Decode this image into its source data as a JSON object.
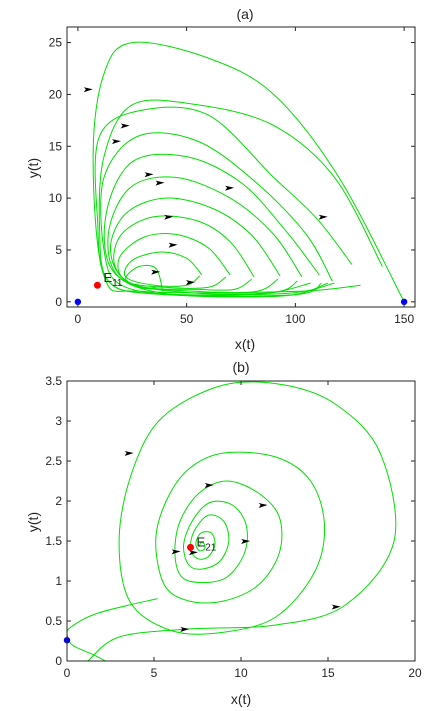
{
  "chart_data": [
    {
      "type": "line",
      "panel_label": "(a)",
      "xlabel": "x(t)",
      "ylabel": "y(t)",
      "xlim": [
        -5,
        155
      ],
      "ylim": [
        -0.5,
        26.5
      ],
      "xticks": [
        0,
        50,
        100,
        150
      ],
      "yticks": [
        0,
        5,
        10,
        15,
        20,
        25
      ],
      "grid": false,
      "line_color": "#00e000",
      "series": [
        {
          "values": [
            [
              150,
              0
            ],
            [
              120,
              12
            ],
            [
              90,
              20
            ],
            [
              60,
              23.5
            ],
            [
              25,
              25
            ],
            [
              12,
              22
            ],
            [
              7,
              14
            ],
            [
              12,
              2.5
            ],
            [
              30,
              1.0
            ],
            [
              100,
              1.0
            ],
            [
              130,
              1.6
            ]
          ]
        },
        {
          "values": [
            [
              140,
              3.4
            ],
            [
              118,
              12
            ],
            [
              90,
              17
            ],
            [
              55,
              19
            ],
            [
              25,
              19
            ],
            [
              12,
              14
            ],
            [
              10,
              7
            ],
            [
              14,
              2
            ],
            [
              35,
              0.8
            ],
            [
              95,
              0.8
            ],
            [
              118,
              1.8
            ]
          ]
        },
        {
          "values": [
            [
              126,
              3.6
            ],
            [
              110,
              8
            ],
            [
              90,
              12
            ],
            [
              60,
              18
            ],
            [
              30,
              18.5
            ],
            [
              10,
              16
            ],
            [
              9,
              8
            ],
            [
              14,
              2
            ],
            [
              40,
              0.7
            ],
            [
              100,
              0.7
            ],
            [
              112,
              1.8
            ]
          ]
        },
        {
          "values": [
            [
              117,
              2.0
            ],
            [
              105,
              6.5
            ],
            [
              82,
              11.5
            ],
            [
              55,
              15.5
            ],
            [
              28,
              16
            ],
            [
              12,
              12
            ],
            [
              12,
              5
            ],
            [
              20,
              1.6
            ],
            [
              50,
              0.6
            ],
            [
              96,
              0.6
            ],
            [
              115,
              1.8
            ]
          ]
        },
        {
          "values": [
            [
              111,
              2.6
            ],
            [
              95,
              7
            ],
            [
              75,
              11.5
            ],
            [
              50,
              14
            ],
            [
              25,
              13.5
            ],
            [
              13,
              8.5
            ],
            [
              16,
              3
            ],
            [
              40,
              0.8
            ],
            [
              85,
              0.8
            ],
            [
              107,
              1.8
            ]
          ]
        },
        {
          "values": [
            [
              103,
              2.4
            ],
            [
              90,
              6.5
            ],
            [
              70,
              10
            ],
            [
              45,
              12
            ],
            [
              24,
              11
            ],
            [
              14,
              6.5
            ],
            [
              20,
              2.2
            ],
            [
              50,
              0.9
            ],
            [
              90,
              0.9
            ],
            [
              101,
              2.0
            ]
          ]
        },
        {
          "values": [
            [
              93,
              2.5
            ],
            [
              80,
              6.4
            ],
            [
              62,
              9
            ],
            [
              40,
              10
            ],
            [
              22,
              8.5
            ],
            [
              15,
              5
            ],
            [
              24,
              1.8
            ],
            [
              55,
              1.0
            ],
            [
              82,
              1.0
            ],
            [
              92,
              2.2
            ]
          ]
        },
        {
          "values": [
            [
              81,
              2.4
            ],
            [
              70,
              5.8
            ],
            [
              55,
              7.8
            ],
            [
              35,
              8.2
            ],
            [
              20,
              6.5
            ],
            [
              17,
              3.5
            ],
            [
              28,
              1.5
            ],
            [
              55,
              1.2
            ],
            [
              72,
              1.2
            ],
            [
              80,
              2.2
            ]
          ]
        },
        {
          "values": [
            [
              70,
              2.6
            ],
            [
              60,
              5.2
            ],
            [
              45,
              6.5
            ],
            [
              30,
              6.2
            ],
            [
              19,
              4.2
            ],
            [
              22,
              2.0
            ],
            [
              40,
              1.4
            ],
            [
              60,
              1.4
            ],
            [
              68,
              2.4
            ]
          ]
        },
        {
          "values": [
            [
              57,
              2.6
            ],
            [
              50,
              4.2
            ],
            [
              38,
              4.8
            ],
            [
              25,
              4.0
            ],
            [
              22,
              2.4
            ],
            [
              35,
              1.6
            ],
            [
              50,
              1.6
            ],
            [
              56,
              2.5
            ]
          ]
        },
        {
          "values": [
            [
              39,
              1.0
            ],
            [
              36,
              3.2
            ],
            [
              28,
              3.4
            ],
            [
              22,
              2.2
            ],
            [
              30,
              1.3
            ],
            [
              38,
              1.5
            ]
          ]
        }
      ],
      "arrows": [
        [
          5,
          20.5
        ],
        [
          18,
          15.5
        ],
        [
          22,
          17
        ],
        [
          33,
          12.3
        ],
        [
          38,
          11.5
        ],
        [
          42,
          8.2
        ],
        [
          44,
          5.5
        ],
        [
          36,
          2.9
        ],
        [
          52,
          1.9
        ],
        [
          70,
          11
        ],
        [
          113,
          8.2
        ]
      ],
      "equilibria": [
        {
          "x": 0,
          "y": 0,
          "color": "#0000ff",
          "label": ""
        },
        {
          "x": 150,
          "y": 0,
          "color": "#0000ff",
          "label": ""
        },
        {
          "x": 9,
          "y": 1.6,
          "color": "#ff0000",
          "label": "E",
          "subscript": "11"
        }
      ]
    },
    {
      "type": "line",
      "panel_label": "(b)",
      "xlabel": "x(t)",
      "ylabel": "y(t)",
      "xlim": [
        0,
        20
      ],
      "ylim": [
        0,
        3.5
      ],
      "xticks": [
        0,
        5,
        10,
        15,
        20
      ],
      "yticks": [
        0,
        0.5,
        1,
        1.5,
        2,
        2.5,
        3,
        3.5
      ],
      "grid": false,
      "line_color": "#00e000",
      "series": [
        {
          "values": [
            [
              1.2,
              0
            ],
            [
              3,
              0.3
            ],
            [
              7,
              0.4
            ],
            [
              12,
              0.45
            ],
            [
              16,
              0.7
            ],
            [
              18.8,
              1.5
            ],
            [
              18,
              2.6
            ],
            [
              15.5,
              3.2
            ],
            [
              12.5,
              3.45
            ],
            [
              9,
              3.45
            ],
            [
              5.5,
              3.05
            ],
            [
              3.8,
              2.4
            ],
            [
              3,
              1.55
            ],
            [
              3.6,
              0.75
            ],
            [
              6,
              0.38
            ],
            [
              9,
              0.36
            ],
            [
              12,
              0.55
            ],
            [
              14.2,
              1.1
            ],
            [
              14.8,
              1.7
            ],
            [
              14,
              2.25
            ],
            [
              12,
              2.55
            ],
            [
              9,
              2.6
            ],
            [
              7,
              2.4
            ],
            [
              5.7,
              2.0
            ],
            [
              5.1,
              1.5
            ],
            [
              5.6,
              0.95
            ],
            [
              7,
              0.75
            ],
            [
              9,
              0.75
            ],
            [
              11,
              0.95
            ],
            [
              12.2,
              1.35
            ],
            [
              12.2,
              1.8
            ],
            [
              11,
              2.1
            ],
            [
              9.2,
              2.25
            ],
            [
              7.6,
              2.1
            ],
            [
              6.5,
              1.75
            ],
            [
              6.2,
              1.35
            ],
            [
              6.6,
              1.05
            ],
            [
              7.8,
              0.98
            ],
            [
              9.2,
              1.05
            ],
            [
              10.2,
              1.35
            ],
            [
              10.3,
              1.7
            ],
            [
              9.5,
              1.95
            ],
            [
              8.2,
              1.98
            ],
            [
              7.2,
              1.75
            ],
            [
              6.7,
              1.45
            ],
            [
              7.0,
              1.2
            ],
            [
              7.8,
              1.15
            ],
            [
              8.8,
              1.25
            ],
            [
              9.3,
              1.5
            ],
            [
              9.0,
              1.75
            ],
            [
              8.1,
              1.82
            ],
            [
              7.3,
              1.62
            ],
            [
              7.1,
              1.4
            ],
            [
              7.5,
              1.28
            ],
            [
              8.1,
              1.3
            ],
            [
              8.5,
              1.45
            ],
            [
              8.3,
              1.6
            ],
            [
              7.7,
              1.6
            ],
            [
              7.4,
              1.47
            ],
            [
              7.6,
              1.38
            ],
            [
              7.9,
              1.4
            ],
            [
              7.9,
              1.46
            ],
            [
              7.7,
              1.48
            ],
            [
              7.6,
              1.43
            ]
          ]
        },
        {
          "values": [
            [
              0,
              0.33
            ],
            [
              0.3,
              0.2
            ],
            [
              1.5,
              0.08
            ],
            [
              2.2,
              0
            ]
          ]
        },
        {
          "values": [
            [
              0,
              0.32
            ],
            [
              0.2,
              0.42
            ],
            [
              1.8,
              0.6
            ],
            [
              5.2,
              0.78
            ]
          ]
        }
      ],
      "arrows": [
        [
          3.6,
          2.6
        ],
        [
          8.2,
          2.2
        ],
        [
          11.3,
          1.95
        ],
        [
          10.3,
          1.5
        ],
        [
          6.3,
          1.37
        ],
        [
          7.3,
          1.36
        ],
        [
          15.5,
          0.68
        ],
        [
          6.8,
          0.4
        ]
      ],
      "equilibria": [
        {
          "x": 0,
          "y": 0.26,
          "color": "#0000ff",
          "label": ""
        },
        {
          "x": 7.1,
          "y": 1.42,
          "color": "#ff0000",
          "label": "E",
          "subscript": "21"
        }
      ]
    }
  ]
}
